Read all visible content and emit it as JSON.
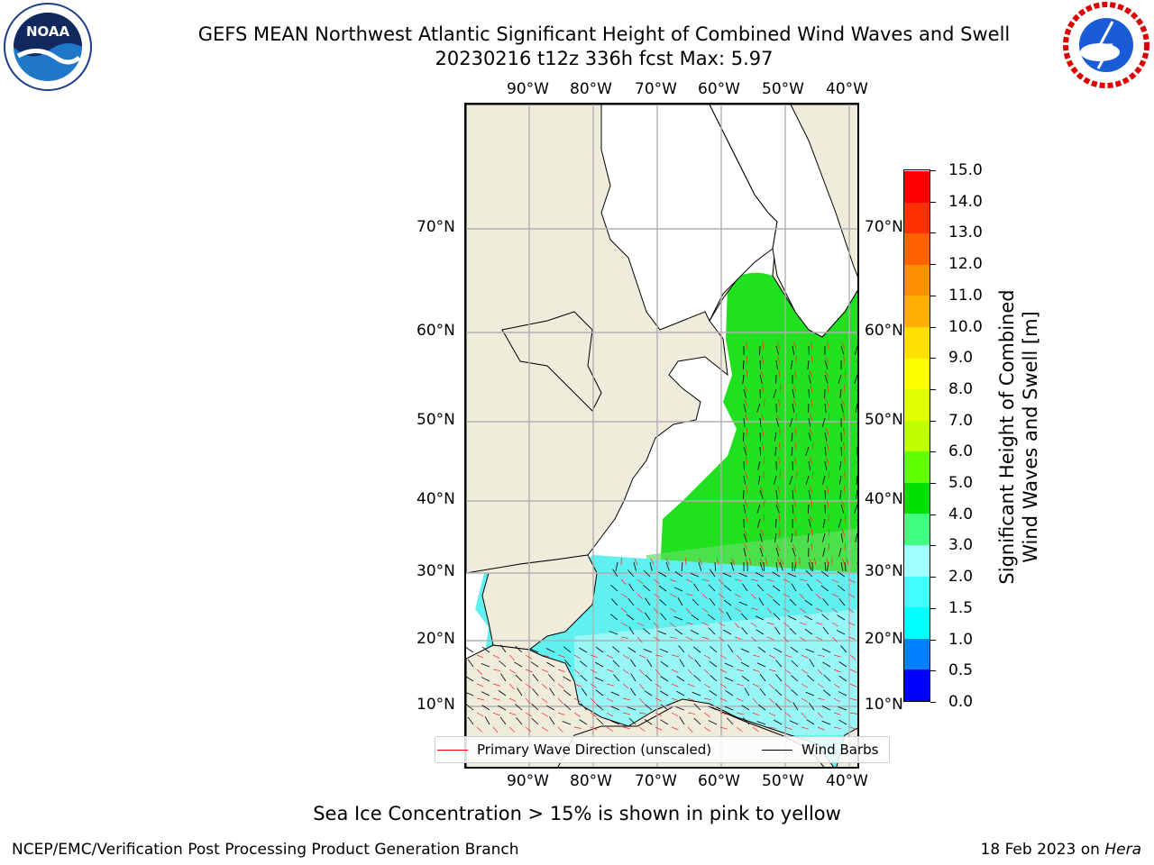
{
  "title": {
    "line1": "GEFS MEAN Northwest Atlantic Significant Height of Combined Wind Waves and Swell",
    "line2": "20230216 t12z 336h fcst   Max: 5.97"
  },
  "logos": {
    "noaa": {
      "text": "NOAA",
      "icon": "noaa-logo"
    },
    "nws": {
      "icon": "nws-logo"
    }
  },
  "map": {
    "lon_ticks": [
      "90°W",
      "80°W",
      "70°W",
      "60°W",
      "50°W",
      "40°W"
    ],
    "lat_ticks": [
      "70°N",
      "60°N",
      "50°N",
      "40°N",
      "30°N",
      "20°N",
      "10°N"
    ]
  },
  "legend": {
    "wave_direction": "Primary Wave Direction (unscaled)",
    "wind_barbs": "Wind Barbs",
    "wave_direction_color": "#ff0000",
    "wind_barbs_color": "#000000"
  },
  "colorbar": {
    "label_line1": "Significant Height of Combined",
    "label_line2": "Wind Waves and Swell [m]",
    "ticks": [
      "15.0",
      "14.0",
      "13.0",
      "12.0",
      "11.0",
      "10.0",
      "9.0",
      "8.0",
      "7.0",
      "6.0",
      "5.0",
      "4.0",
      "3.0",
      "2.0",
      "1.5",
      "1.0",
      "0.5",
      "0.0"
    ],
    "colors_bottom_to_top": [
      "#0000ff",
      "#0080ff",
      "#00ffff",
      "#40ffff",
      "#a0ffff",
      "#40ff80",
      "#00e000",
      "#60ff00",
      "#c0ff00",
      "#e0ff00",
      "#ffff00",
      "#ffe000",
      "#ffb000",
      "#ff9000",
      "#ff6000",
      "#ff3000",
      "#ff0000"
    ]
  },
  "colors": {
    "land": "#efecdc",
    "sea_ice": "#ffffff",
    "grid": "#b0b0b0",
    "coast": "#000000"
  },
  "footnote": "Sea Ice Concentration > 15% is shown in pink to yellow",
  "footer": {
    "credit": "NCEP/EMC/Verification Post Processing Product Generation Branch",
    "date": "18 Feb 2023 on ",
    "system": "Hera"
  }
}
